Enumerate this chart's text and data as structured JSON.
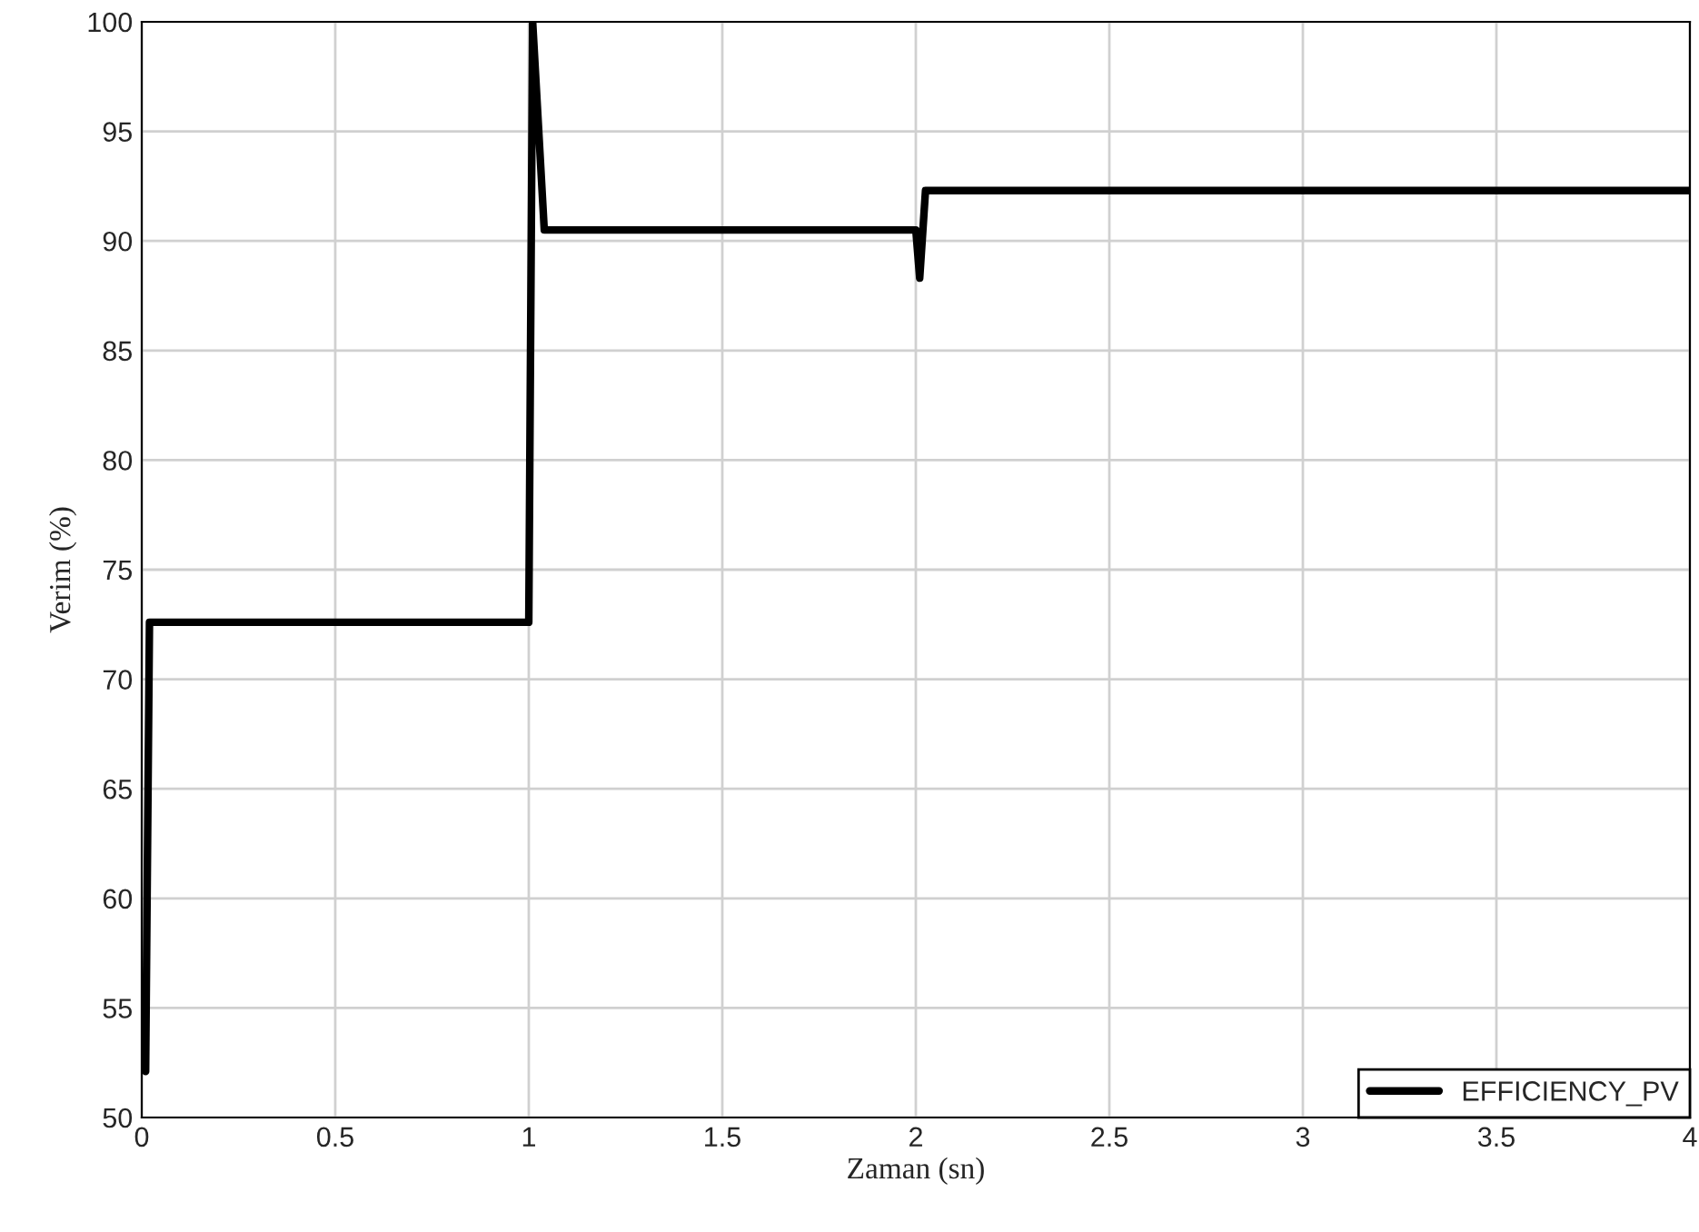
{
  "chart_data": {
    "type": "line",
    "xlabel": "Zaman (sn)",
    "ylabel": "Verim (%)",
    "x": [
      0.01,
      0.02,
      1.0,
      1.01,
      1.04,
      2.0,
      2.01,
      2.025,
      4.0
    ],
    "series": [
      {
        "name": "EFFICIENCY_PV",
        "color": "#000000",
        "values": [
          52.1,
          72.6,
          72.6,
          100,
          90.5,
          90.5,
          88.3,
          92.3,
          92.3
        ]
      }
    ],
    "xlim": [
      0,
      4
    ],
    "xticks": [
      0,
      0.5,
      1,
      1.5,
      2,
      2.5,
      3,
      3.5,
      4
    ],
    "ylim": [
      50,
      100
    ],
    "yticks": [
      50,
      55,
      60,
      65,
      70,
      75,
      80,
      85,
      90,
      95,
      100
    ],
    "grid": true,
    "legend": "bottom right",
    "line_style": "solid",
    "marker": "none"
  }
}
